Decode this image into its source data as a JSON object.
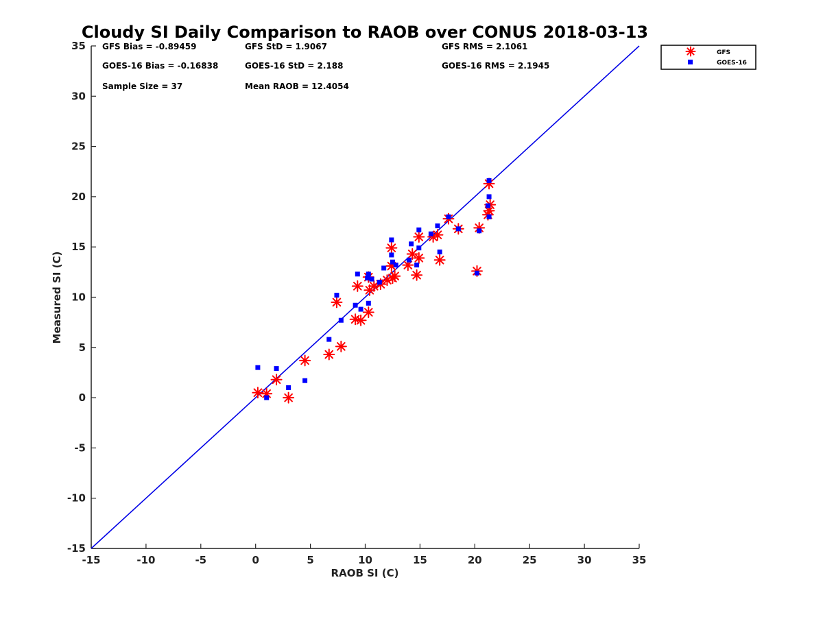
{
  "chart_data": {
    "type": "scatter",
    "title": "Cloudy SI Daily Comparison to RAOB over CONUS 2018-03-13",
    "xlabel": "RAOB SI (C)",
    "ylabel": "Measured SI (C)",
    "xlim": [
      -15,
      35
    ],
    "ylim": [
      -15,
      35
    ],
    "xticks": [
      "-15",
      "-10",
      "-5",
      "0",
      "5",
      "10",
      "15",
      "20",
      "25",
      "30",
      "35"
    ],
    "yticks": [
      "-15",
      "-10",
      "-5",
      "0",
      "5",
      "10",
      "15",
      "20",
      "25",
      "30",
      "35"
    ],
    "grid": false,
    "legend_position": "outside-top-right",
    "reference_line": {
      "type": "one-to-one",
      "color": "#0000e6"
    },
    "stats": [
      [
        "GFS Bias = -0.89459",
        "GFS StD = 1.9067",
        "GFS RMS = 2.1061"
      ],
      [
        "GOES-16 Bias = -0.16838",
        "GOES-16 StD = 2.188",
        "GOES-16 RMS = 2.1945"
      ],
      [
        "Sample Size = 37",
        "Mean RAOB = 12.4054",
        ""
      ]
    ],
    "series": [
      {
        "name": "GFS",
        "marker": "asterisk",
        "color": "#ff0000",
        "points": [
          [
            0.2,
            0.5
          ],
          [
            1.0,
            0.4
          ],
          [
            1.9,
            1.8
          ],
          [
            3.0,
            0.0
          ],
          [
            4.5,
            3.7
          ],
          [
            6.7,
            4.3
          ],
          [
            7.8,
            5.1
          ],
          [
            7.4,
            9.5
          ],
          [
            9.1,
            7.8
          ],
          [
            9.6,
            7.7
          ],
          [
            10.3,
            8.5
          ],
          [
            9.3,
            11.1
          ],
          [
            10.4,
            10.7
          ],
          [
            10.3,
            12.0
          ],
          [
            10.8,
            11.1
          ],
          [
            11.4,
            11.3
          ],
          [
            12.0,
            11.7
          ],
          [
            12.5,
            11.9
          ],
          [
            12.7,
            12.1
          ],
          [
            12.4,
            13.1
          ],
          [
            12.4,
            14.9
          ],
          [
            13.9,
            13.2
          ],
          [
            14.3,
            14.3
          ],
          [
            14.7,
            12.2
          ],
          [
            14.9,
            13.9
          ],
          [
            14.9,
            16.0
          ],
          [
            16.2,
            16.0
          ],
          [
            16.6,
            16.2
          ],
          [
            16.8,
            13.7
          ],
          [
            17.6,
            17.8
          ],
          [
            18.5,
            16.8
          ],
          [
            20.2,
            12.6
          ],
          [
            20.4,
            16.9
          ],
          [
            21.2,
            18.2
          ],
          [
            21.3,
            18.6
          ],
          [
            21.4,
            19.2
          ],
          [
            21.3,
            21.3
          ]
        ]
      },
      {
        "name": "GOES-16",
        "marker": "square",
        "color": "#0000ff",
        "points": [
          [
            0.2,
            3.0
          ],
          [
            1.0,
            0.0
          ],
          [
            1.9,
            2.9
          ],
          [
            3.0,
            1.0
          ],
          [
            4.5,
            1.7
          ],
          [
            6.7,
            5.8
          ],
          [
            7.8,
            7.7
          ],
          [
            7.4,
            10.2
          ],
          [
            9.1,
            9.2
          ],
          [
            9.6,
            8.8
          ],
          [
            10.3,
            9.4
          ],
          [
            9.3,
            12.3
          ],
          [
            10.3,
            12.3
          ],
          [
            10.2,
            11.9
          ],
          [
            10.6,
            11.8
          ],
          [
            11.3,
            11.5
          ],
          [
            11.7,
            12.9
          ],
          [
            12.4,
            15.7
          ],
          [
            12.4,
            14.2
          ],
          [
            12.5,
            13.5
          ],
          [
            12.8,
            13.2
          ],
          [
            14.0,
            13.7
          ],
          [
            14.2,
            15.3
          ],
          [
            14.7,
            13.2
          ],
          [
            14.9,
            16.7
          ],
          [
            14.9,
            14.9
          ],
          [
            16.0,
            16.3
          ],
          [
            16.6,
            17.1
          ],
          [
            16.8,
            14.5
          ],
          [
            17.6,
            18.0
          ],
          [
            18.5,
            16.8
          ],
          [
            20.2,
            12.4
          ],
          [
            20.4,
            16.6
          ],
          [
            21.2,
            19.1
          ],
          [
            21.3,
            20.0
          ],
          [
            21.3,
            18.0
          ],
          [
            21.3,
            21.6
          ]
        ]
      }
    ]
  }
}
